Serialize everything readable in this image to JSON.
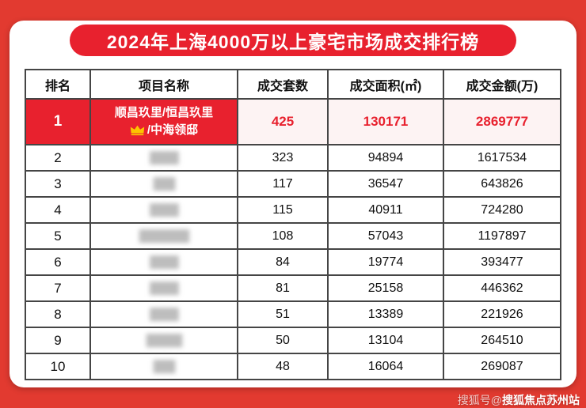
{
  "colors": {
    "background_red": "#E23A30",
    "accent_red": "#E8212E",
    "highlight_cell_bg": "#FDF3F3",
    "crown_gold": "#FCC400"
  },
  "header": {
    "title": "2024年上海4000万以上豪宅市场成交排行榜"
  },
  "table": {
    "headers": [
      "排名",
      "项目名称",
      "成交套数",
      "成交面积(㎡)",
      "成交金额(万)"
    ],
    "rows": [
      {
        "rank": "1",
        "highlight": true,
        "name_line1": "顺昌玖里/恒昌玖里",
        "name_line2": "/中海领邸",
        "crown_icon": "crown",
        "units": "425",
        "area": "130171",
        "amount": "2869777"
      },
      {
        "rank": "2",
        "name_redacted": "████",
        "units": "323",
        "area": "94894",
        "amount": "1617534"
      },
      {
        "rank": "3",
        "name_redacted": "███",
        "units": "117",
        "area": "36547",
        "amount": "643826"
      },
      {
        "rank": "4",
        "name_redacted": "████",
        "units": "115",
        "area": "40911",
        "amount": "724280"
      },
      {
        "rank": "5",
        "name_redacted": "███████",
        "units": "108",
        "area": "57043",
        "amount": "1197897"
      },
      {
        "rank": "6",
        "name_redacted": "████",
        "units": "84",
        "area": "19774",
        "amount": "393477"
      },
      {
        "rank": "7",
        "name_redacted": "████",
        "units": "81",
        "area": "25158",
        "amount": "446362"
      },
      {
        "rank": "8",
        "name_redacted": "████",
        "units": "51",
        "area": "13389",
        "amount": "221926"
      },
      {
        "rank": "9",
        "name_redacted": "█████",
        "units": "50",
        "area": "13104",
        "amount": "264510"
      },
      {
        "rank": "10",
        "name_redacted": "███",
        "units": "48",
        "area": "16064",
        "amount": "269087"
      }
    ]
  },
  "footer": {
    "watermark_prefix": "搜狐号@",
    "watermark_account": "搜狐焦点苏州站"
  },
  "chart_data": {
    "type": "table",
    "title": "2024年上海4000万以上豪宅市场成交排行榜",
    "columns": [
      "排名",
      "项目名称",
      "成交套数",
      "成交面积(㎡)",
      "成交金额(万)"
    ],
    "rows": [
      [
        1,
        "顺昌玖里/恒昌玖里/中海领邸",
        425,
        130171,
        2869777
      ],
      [
        2,
        "████",
        323,
        94894,
        1617534
      ],
      [
        3,
        "███",
        117,
        36547,
        643826
      ],
      [
        4,
        "████",
        115,
        40911,
        724280
      ],
      [
        5,
        "███████",
        108,
        57043,
        1197897
      ],
      [
        6,
        "████",
        84,
        19774,
        393477
      ],
      [
        7,
        "████",
        81,
        25158,
        446362
      ],
      [
        8,
        "████",
        51,
        13389,
        221926
      ],
      [
        9,
        "█████",
        50,
        13104,
        264510
      ],
      [
        10,
        "███",
        48,
        16064,
        269087
      ]
    ]
  }
}
